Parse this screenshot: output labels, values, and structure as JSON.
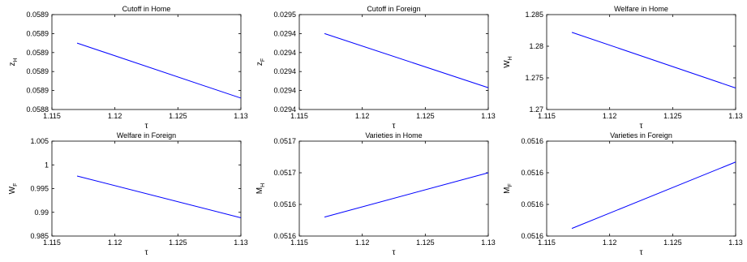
{
  "chart_data": [
    {
      "type": "line",
      "title": "Cutoff in Home",
      "xlabel": "τ",
      "ylabel": {
        "base": "z",
        "sub": "H"
      },
      "xlim": [
        1.115,
        1.13
      ],
      "xticks": [
        "1.115",
        "1.12",
        "1.125",
        "1.13"
      ],
      "ylim": [
        0.0588,
        0.0589
      ],
      "yticks": [
        "0.0588",
        "0.0589",
        "0.0589",
        "0.0589",
        "0.0589",
        "0.0589"
      ],
      "series": [
        {
          "color": "#0000ff",
          "x": [
            1.117,
            1.13
          ],
          "y": [
            0.05887,
            0.058812
          ]
        }
      ]
    },
    {
      "type": "line",
      "title": "Cutoff in Foreign",
      "xlabel": "τ",
      "ylabel": {
        "base": "z",
        "sub": "F"
      },
      "xlim": [
        1.115,
        1.13
      ],
      "xticks": [
        "1.115",
        "1.12",
        "1.125",
        "1.13"
      ],
      "ylim": [
        0.0294,
        0.0295
      ],
      "yticks": [
        "0.0294",
        "0.0294",
        "0.0294",
        "0.0294",
        "0.0294",
        "0.0295"
      ],
      "series": [
        {
          "color": "#0000ff",
          "x": [
            1.117,
            1.13
          ],
          "y": [
            0.02948,
            0.029423
          ]
        }
      ]
    },
    {
      "type": "line",
      "title": "Welfare in Home",
      "xlabel": "τ",
      "ylabel": {
        "base": "W",
        "sub": "H"
      },
      "xlim": [
        1.115,
        1.13
      ],
      "xticks": [
        "1.115",
        "1.12",
        "1.125",
        "1.13"
      ],
      "ylim": [
        1.27,
        1.285
      ],
      "yticks": [
        "1.27",
        "1.275",
        "1.28",
        "1.285"
      ],
      "series": [
        {
          "color": "#0000ff",
          "x": [
            1.117,
            1.13
          ],
          "y": [
            1.2822,
            1.2734
          ]
        }
      ]
    },
    {
      "type": "line",
      "title": "Welfare in Foreign",
      "xlabel": "τ",
      "ylabel": {
        "base": "W",
        "sub": "F"
      },
      "xlim": [
        1.115,
        1.13
      ],
      "xticks": [
        "1.115",
        "1.12",
        "1.125",
        "1.13"
      ],
      "ylim": [
        0.985,
        1.005
      ],
      "yticks": [
        "0.985",
        "0.99",
        "0.995",
        "1",
        "1.005"
      ],
      "series": [
        {
          "color": "#0000ff",
          "x": [
            1.117,
            1.13
          ],
          "y": [
            0.99765,
            0.98885
          ]
        }
      ]
    },
    {
      "type": "line",
      "title": "Varieties in Home",
      "xlabel": "τ",
      "ylabel": {
        "base": "M",
        "sub": "H"
      },
      "xlim": [
        1.115,
        1.13
      ],
      "xticks": [
        "1.115",
        "1.12",
        "1.125",
        "1.13"
      ],
      "ylim": [
        0.05155,
        0.0517
      ],
      "yticks": [
        "0.0516",
        "0.0516",
        "0.0517",
        "0.0517"
      ],
      "series": [
        {
          "color": "#0000ff",
          "x": [
            1.117,
            1.13
          ],
          "y": [
            0.05158,
            0.05165
          ]
        }
      ]
    },
    {
      "type": "line",
      "title": "Varieties in Foreign",
      "xlabel": "τ",
      "ylabel": {
        "base": "M",
        "sub": "F"
      },
      "xlim": [
        1.115,
        1.13
      ],
      "xticks": [
        "1.115",
        "1.12",
        "1.125",
        "1.13"
      ],
      "ylim": [
        0.05155,
        0.0516
      ],
      "yticks": [
        "0.0516",
        "0.0516",
        "0.0516",
        "0.0516"
      ],
      "series": [
        {
          "color": "#0000ff",
          "x": [
            1.117,
            1.13
          ],
          "y": [
            0.051554,
            0.051589
          ]
        }
      ]
    }
  ]
}
